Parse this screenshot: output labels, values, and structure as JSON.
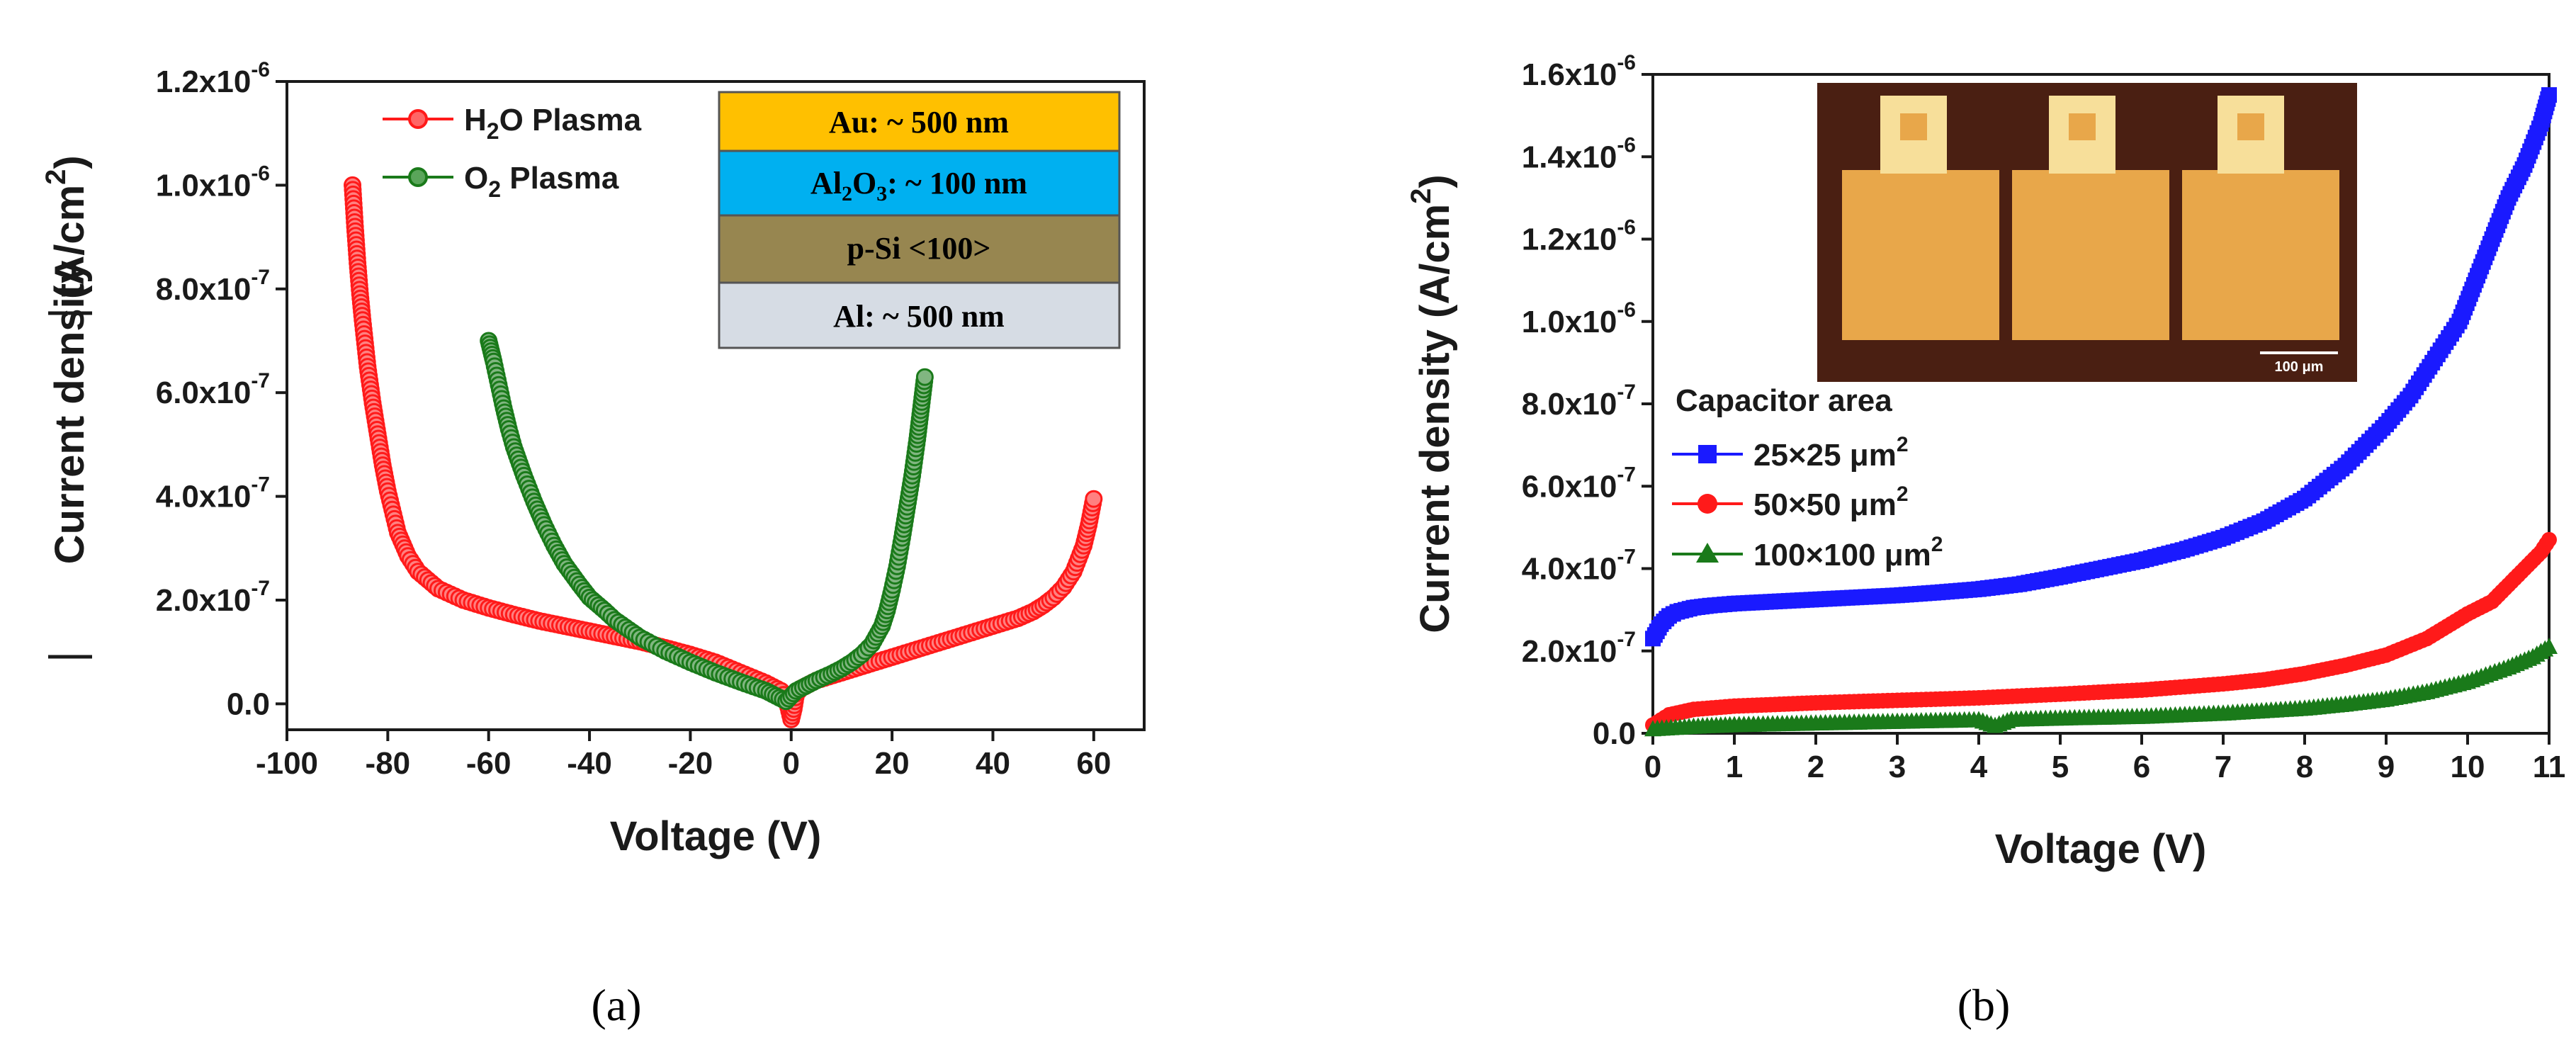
{
  "colors": {
    "red": "#ff1a1a",
    "green": "#1a7a1a",
    "blue": "#1a1aff",
    "black": "#1a1a1a"
  },
  "chart_data": [
    {
      "type": "scatter",
      "caption": "(a)",
      "xlabel": "Voltage (V)",
      "ylabel_main": "Current density",
      "ylabel_units": "(A/cm",
      "ylabel_sup": "2",
      "ylabel_end": ")",
      "xlim": [
        -100,
        70
      ],
      "ylim": [
        -5e-08,
        1.2e-06
      ],
      "xticks": [
        {
          "v": -100,
          "label": "-100"
        },
        {
          "v": -80,
          "label": "-80"
        },
        {
          "v": -60,
          "label": "-60"
        },
        {
          "v": -40,
          "label": "-40"
        },
        {
          "v": -20,
          "label": "-20"
        },
        {
          "v": 0,
          "label": "0"
        },
        {
          "v": 20,
          "label": "20"
        },
        {
          "v": 40,
          "label": "40"
        },
        {
          "v": 60,
          "label": "60"
        }
      ],
      "yticks": [
        {
          "v": 0,
          "m": "0.0",
          "e": ""
        },
        {
          "v": 2e-07,
          "m": "2.0x10",
          "e": "-7"
        },
        {
          "v": 4e-07,
          "m": "4.0x10",
          "e": "-7"
        },
        {
          "v": 6e-07,
          "m": "6.0x10",
          "e": "-7"
        },
        {
          "v": 8e-07,
          "m": "8.0x10",
          "e": "-7"
        },
        {
          "v": 1e-06,
          "m": "1.0x10",
          "e": "-6"
        },
        {
          "v": 1.2e-06,
          "m": "1.2x10",
          "e": "-6"
        }
      ],
      "legend": [
        {
          "pre": "H",
          "sub": "2",
          "post": "O Plasma",
          "color": "#ff1a1a"
        },
        {
          "pre": "O",
          "sub": "2",
          "post": " Plasma",
          "color": "#1a7a1a"
        }
      ],
      "layers": [
        {
          "label_pre": "Au: ~ 500 nm",
          "color": "#ffc000"
        },
        {
          "label_pre": "Al",
          "sub1": "2",
          "mid": "O",
          "sub2": "3",
          "label_post": ": ~ 100 nm",
          "color": "#00b0f0"
        },
        {
          "label_pre": "p-Si <100>",
          "color": "#978650"
        },
        {
          "label_pre": "Al: ~ 500 nm",
          "color": "#d6dce4"
        }
      ],
      "series": [
        {
          "name": "H2O Plasma",
          "color": "#ff1a1a",
          "x": [
            -87,
            -86.5,
            -86,
            -85.5,
            -85,
            -84,
            -83,
            -82,
            -81,
            -80,
            -78,
            -76,
            -74,
            -70,
            -65,
            -60,
            -55,
            -50,
            -45,
            -40,
            -35,
            -30,
            -25,
            -20,
            -15,
            -10,
            -5,
            -2,
            -1,
            0,
            0.5,
            1,
            2,
            5,
            10,
            15,
            20,
            25,
            30,
            35,
            40,
            45,
            48,
            50,
            52,
            54,
            56,
            57,
            58,
            59,
            59.5,
            60
          ],
          "y": [
            1e-06,
            9.2e-07,
            8.5e-07,
            7.9e-07,
            7.4e-07,
            6.5e-07,
            5.8e-07,
            5.2e-07,
            4.6e-07,
            4.1e-07,
            3.3e-07,
            2.85e-07,
            2.55e-07,
            2.22e-07,
            2e-07,
            1.85e-07,
            1.72e-07,
            1.6e-07,
            1.5e-07,
            1.4e-07,
            1.3e-07,
            1.2e-07,
            1.08e-07,
            9.5e-08,
            8e-08,
            6e-08,
            4e-08,
            2.5e-08,
            1e-08,
            -3e-08,
            -1e-08,
            2e-08,
            3e-08,
            4.5e-08,
            6e-08,
            7.5e-08,
            9e-08,
            1.05e-07,
            1.2e-07,
            1.35e-07,
            1.5e-07,
            1.65e-07,
            1.78e-07,
            1.9e-07,
            2.05e-07,
            2.25e-07,
            2.55e-07,
            2.8e-07,
            3.05e-07,
            3.45e-07,
            3.7e-07,
            3.95e-07
          ]
        },
        {
          "name": "O2 Plasma",
          "color": "#1a7a1a",
          "x": [
            -60,
            -59.5,
            -59,
            -58,
            -57,
            -56,
            -55,
            -53,
            -51,
            -49,
            -47,
            -45,
            -42,
            -40,
            -37,
            -35,
            -30,
            -25,
            -20,
            -15,
            -10,
            -5,
            -3,
            -1,
            0,
            1,
            3,
            5,
            8,
            10,
            12,
            14,
            16,
            18,
            19,
            20,
            21,
            22,
            23,
            24,
            25,
            25.5,
            26,
            26.5
          ],
          "y": [
            7e-07,
            6.8e-07,
            6.6e-07,
            6.15e-07,
            5.7e-07,
            5.3e-07,
            4.95e-07,
            4.4e-07,
            3.9e-07,
            3.45e-07,
            3.05e-07,
            2.7e-07,
            2.3e-07,
            2.05e-07,
            1.8e-07,
            1.62e-07,
            1.28e-07,
            1.02e-07,
            8e-08,
            6e-08,
            4.2e-08,
            2.5e-08,
            1.5e-08,
            5e-09,
            1.5e-08,
            2.5e-08,
            3.5e-08,
            4.5e-08,
            5.8e-08,
            6.8e-08,
            8e-08,
            9.5e-08,
            1.15e-07,
            1.5e-07,
            1.8e-07,
            2.2e-07,
            2.65e-07,
            3.2e-07,
            3.8e-07,
            4.4e-07,
            5.1e-07,
            5.5e-07,
            5.9e-07,
            6.3e-07
          ]
        }
      ]
    },
    {
      "type": "scatter",
      "caption": "(b)",
      "xlabel": "Voltage (V)",
      "ylabel_main": "Current density",
      "ylabel_units": "(A/cm",
      "ylabel_sup": "2",
      "ylabel_end": ")",
      "xlim": [
        0,
        11
      ],
      "ylim": [
        0,
        1.6e-06
      ],
      "xticks": [
        {
          "v": 0,
          "label": "0"
        },
        {
          "v": 1,
          "label": "1"
        },
        {
          "v": 2,
          "label": "2"
        },
        {
          "v": 3,
          "label": "3"
        },
        {
          "v": 4,
          "label": "4"
        },
        {
          "v": 5,
          "label": "5"
        },
        {
          "v": 6,
          "label": "6"
        },
        {
          "v": 7,
          "label": "7"
        },
        {
          "v": 8,
          "label": "8"
        },
        {
          "v": 9,
          "label": "9"
        },
        {
          "v": 10,
          "label": "10"
        },
        {
          "v": 11,
          "label": "11"
        }
      ],
      "yticks": [
        {
          "v": 0,
          "m": "0.0",
          "e": ""
        },
        {
          "v": 2e-07,
          "m": "2.0x10",
          "e": "-7"
        },
        {
          "v": 4e-07,
          "m": "4.0x10",
          "e": "-7"
        },
        {
          "v": 6e-07,
          "m": "6.0x10",
          "e": "-7"
        },
        {
          "v": 8e-07,
          "m": "8.0x10",
          "e": "-7"
        },
        {
          "v": 1e-06,
          "m": "1.0x10",
          "e": "-6"
        },
        {
          "v": 1.2e-06,
          "m": "1.2x10",
          "e": "-6"
        },
        {
          "v": 1.4e-06,
          "m": "1.4x10",
          "e": "-6"
        },
        {
          "v": 1.6e-06,
          "m": "1.6x10",
          "e": "-6"
        }
      ],
      "legend_title": "Capacitor area",
      "legend": [
        {
          "pre": "25×25 μm",
          "sup": "2",
          "color": "#1a1aff",
          "marker": "square"
        },
        {
          "pre": "50×50 μm",
          "sup": "2",
          "color": "#ff1a1a",
          "marker": "circle"
        },
        {
          "pre": "100×100 μm",
          "sup": "2",
          "color": "#1a7a1a",
          "marker": "triangle"
        }
      ],
      "inset": {
        "scale_label": "100 μm"
      },
      "series": [
        {
          "name": "25×25 μm2",
          "color": "#1a1aff",
          "marker": "square",
          "x": [
            0,
            0.1,
            0.2,
            0.3,
            0.5,
            0.7,
            1,
            1.5,
            2,
            2.5,
            3,
            3.5,
            4,
            4.5,
            5,
            5.5,
            6,
            6.5,
            7,
            7.5,
            8,
            8.5,
            9,
            9.3,
            9.6,
            9.9,
            10.1,
            10.3,
            10.5,
            10.7,
            10.9,
            11
          ],
          "y": [
            2.3e-07,
            2.65e-07,
            2.85e-07,
            2.95e-07,
            3.05e-07,
            3.1e-07,
            3.15e-07,
            3.2e-07,
            3.25e-07,
            3.3e-07,
            3.35e-07,
            3.42e-07,
            3.5e-07,
            3.62e-07,
            3.8e-07,
            4e-07,
            4.2e-07,
            4.45e-07,
            4.75e-07,
            5.15e-07,
            5.7e-07,
            6.5e-07,
            7.5e-07,
            8.2e-07,
            9.1e-07,
            1e-06,
            1.1e-06,
            1.2e-06,
            1.3e-06,
            1.38e-06,
            1.48e-06,
            1.55e-06
          ]
        },
        {
          "name": "50×50 μm2",
          "color": "#ff1a1a",
          "marker": "circle",
          "x": [
            0,
            0.2,
            0.5,
            1,
            1.5,
            2,
            3,
            4,
            5,
            6,
            7,
            7.5,
            8,
            8.5,
            9,
            9.5,
            10,
            10.3,
            10.5,
            10.7,
            10.9,
            11
          ],
          "y": [
            2e-08,
            4.5e-08,
            5.8e-08,
            6.6e-08,
            7e-08,
            7.4e-08,
            8e-08,
            8.6e-08,
            9.5e-08,
            1.05e-07,
            1.2e-07,
            1.3e-07,
            1.45e-07,
            1.65e-07,
            1.9e-07,
            2.3e-07,
            2.9e-07,
            3.2e-07,
            3.6e-07,
            4e-07,
            4.4e-07,
            4.7e-07
          ]
        },
        {
          "name": "100×100 μm2",
          "color": "#1a7a1a",
          "marker": "triangle",
          "x": [
            0,
            0.5,
            1,
            2,
            3,
            4,
            4.2,
            4.4,
            5,
            6,
            7,
            8,
            8.5,
            9,
            9.5,
            10,
            10.5,
            10.8,
            11
          ],
          "y": [
            1e-08,
            1.6e-08,
            2e-08,
            2.4e-08,
            2.8e-08,
            3.2e-08,
            1.8e-08,
            3.3e-08,
            3.6e-08,
            4e-08,
            4.8e-08,
            6e-08,
            7e-08,
            8.2e-08,
            1e-07,
            1.25e-07,
            1.6e-07,
            1.85e-07,
            2.1e-07
          ]
        }
      ]
    }
  ]
}
